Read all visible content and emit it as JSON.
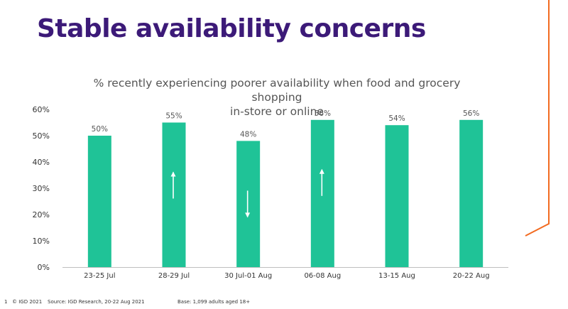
{
  "slide": {
    "title": "Stable availability concerns",
    "footer": {
      "page": "1",
      "copyright": "© IGD 2021",
      "source": "Source: IGD Research, 20-22 Aug  2021",
      "base": "Base: 1,099 adults aged 18+"
    }
  },
  "colors": {
    "bar": "#1fc397",
    "title": "#3c1a78",
    "accent": "#f26b21",
    "arrow": "#ffffff"
  },
  "chart_data": {
    "type": "bar",
    "title": "% recently experiencing poorer availability when food and grocery shopping in-store or online",
    "title_lines": [
      "% recently experiencing poorer availability when food and grocery shopping",
      "in-store or online"
    ],
    "categories": [
      "23-25 Jul",
      "28-29 Jul",
      "30 Jul-01 Aug",
      "06-08 Aug",
      "13-15 Aug",
      "20-22 Aug"
    ],
    "values": [
      50,
      55,
      48,
      56,
      54,
      56
    ],
    "value_labels": [
      "50%",
      "55%",
      "48%",
      "56%",
      "54%",
      "56%"
    ],
    "trend_arrows": [
      "",
      "up",
      "down",
      "up",
      "",
      ""
    ],
    "ylim": [
      0,
      60
    ],
    "yticks": [
      0,
      10,
      20,
      30,
      40,
      50,
      60
    ],
    "ytick_labels": [
      "0%",
      "10%",
      "20%",
      "30%",
      "40%",
      "50%",
      "60%"
    ],
    "grid": false,
    "xlabel": "",
    "ylabel": ""
  }
}
